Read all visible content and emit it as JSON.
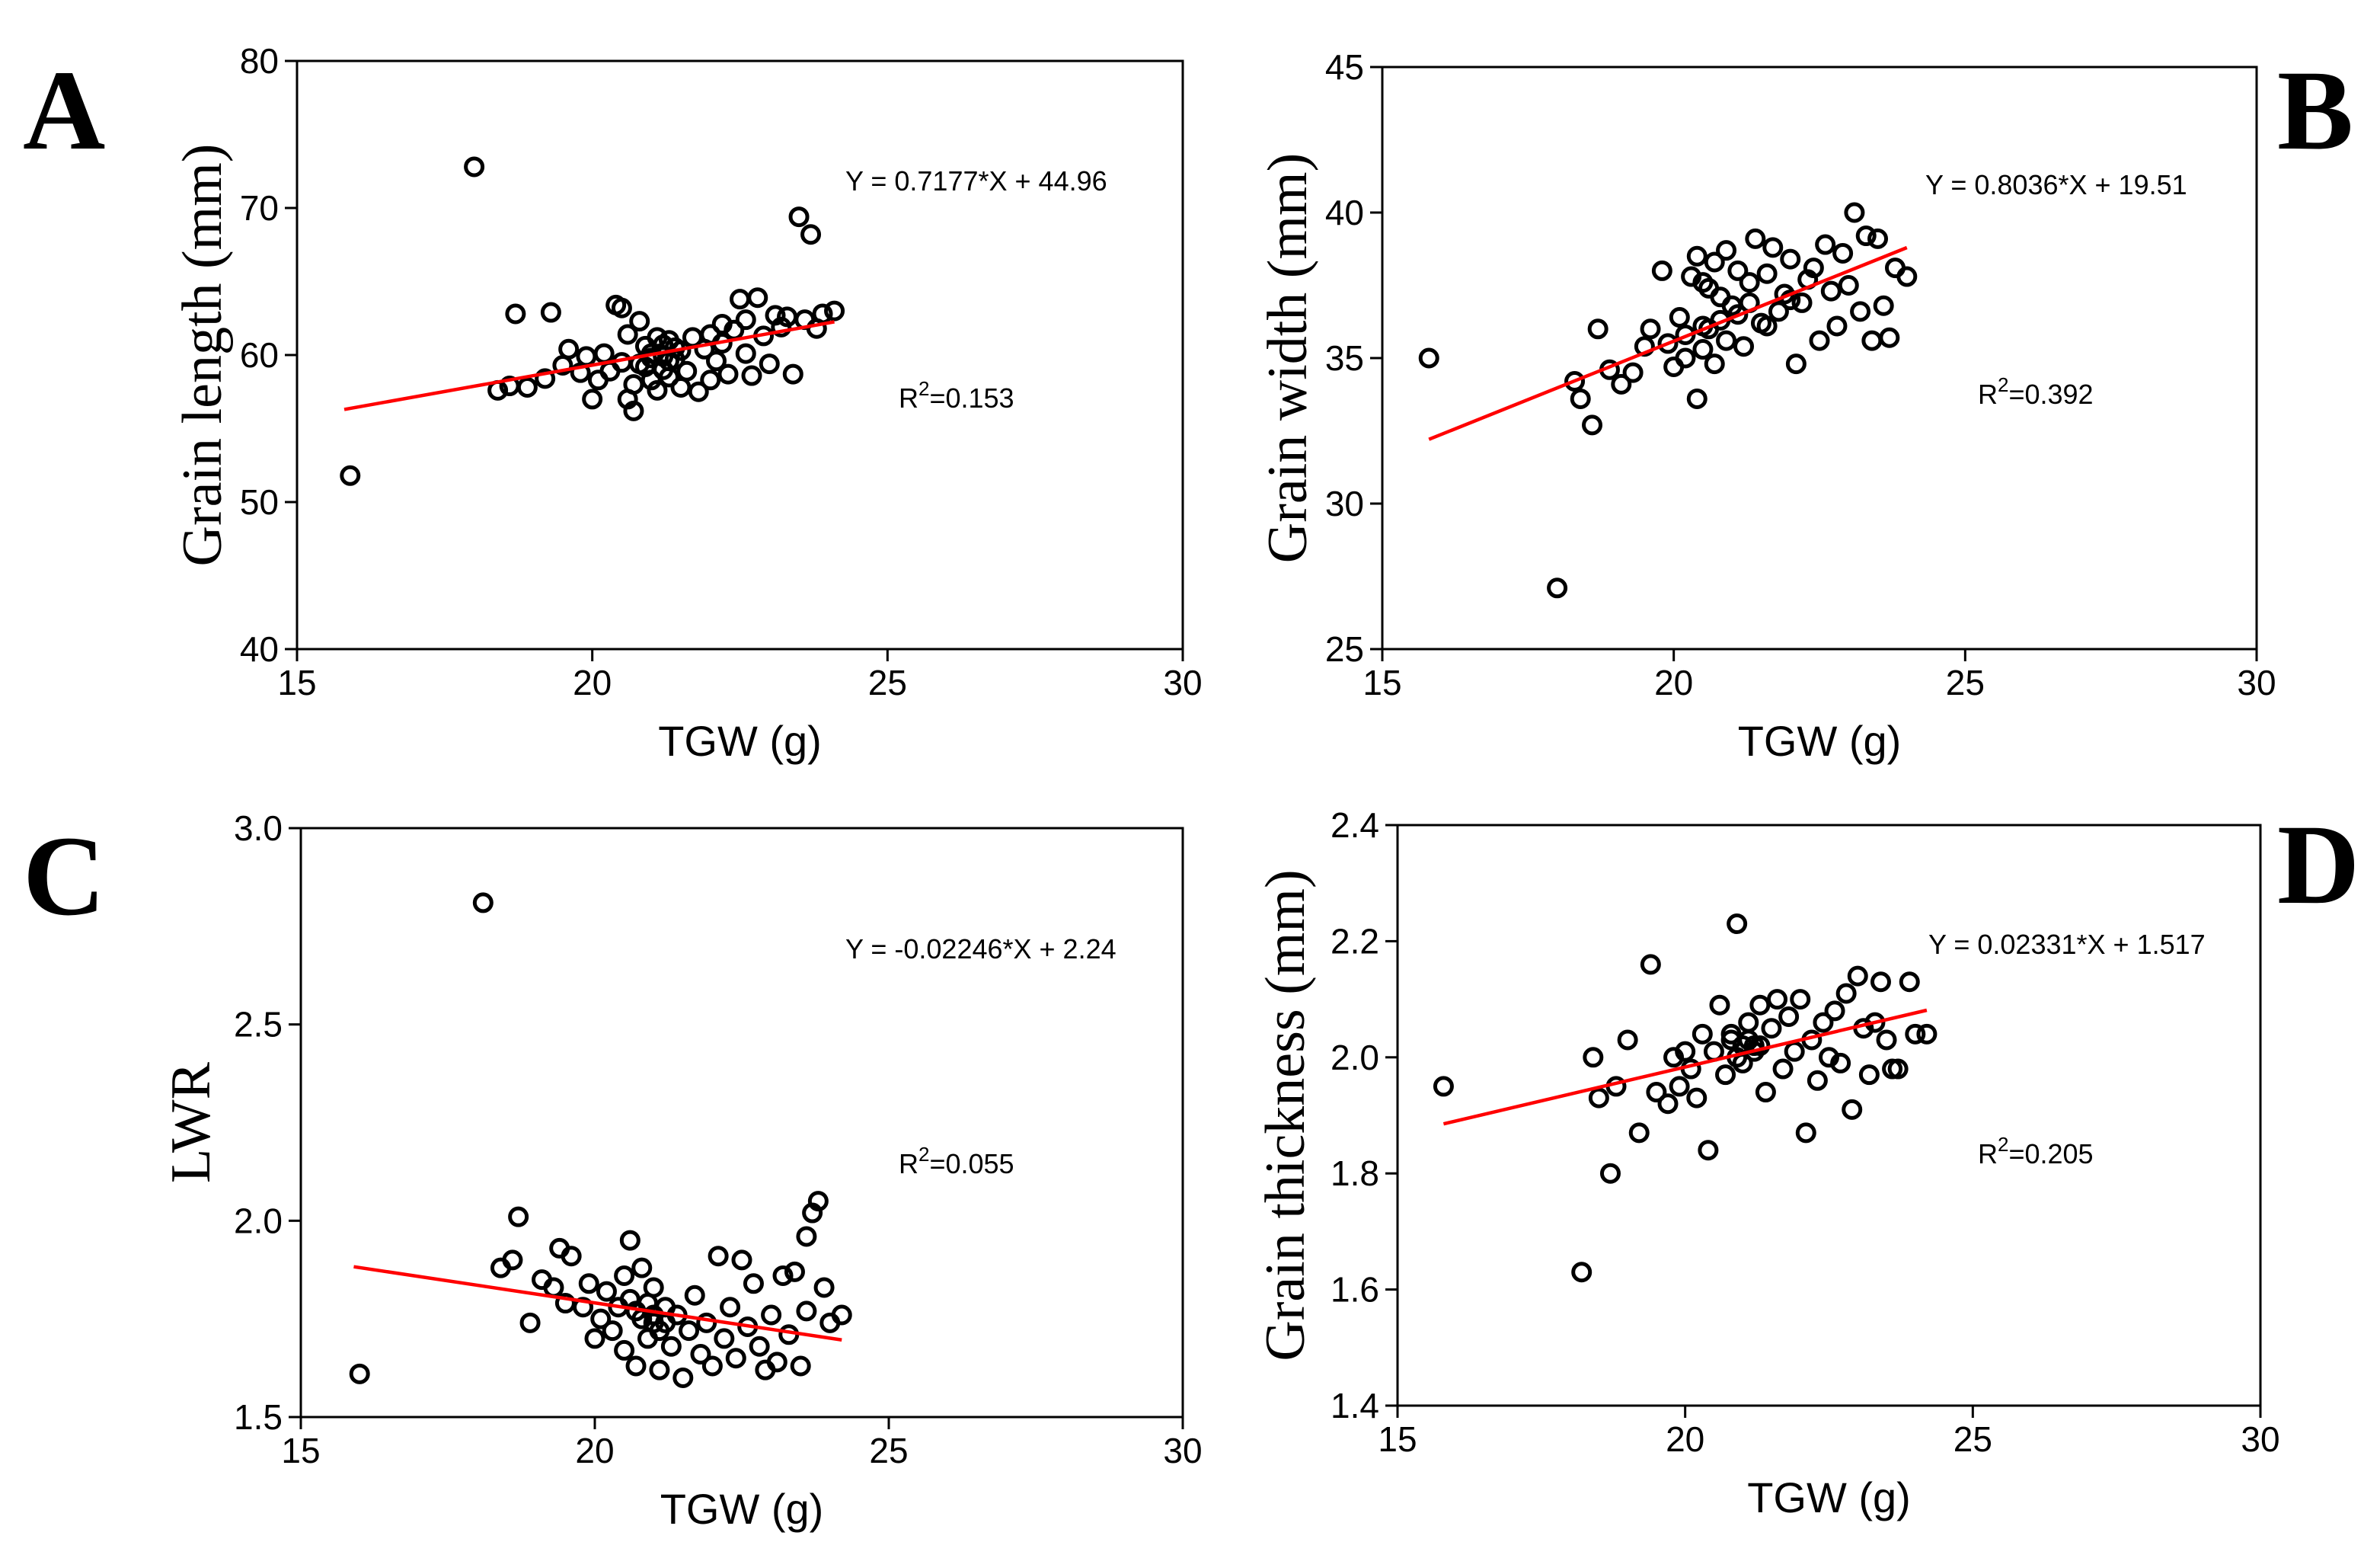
{
  "colors": {
    "points": "#000000",
    "fit_line": "#ff0000",
    "axes": "#000000",
    "background": "#ffffff"
  },
  "chart_data": [
    {
      "panel": "A",
      "type": "scatter",
      "xlabel": "TGW (g)",
      "ylabel": "Grain length (mm)",
      "xlim": [
        15,
        30
      ],
      "ylim": [
        40,
        80
      ],
      "xticks": [
        "15",
        "20",
        "25",
        "30"
      ],
      "yticks": [
        "40",
        "50",
        "60",
        "70",
        "80"
      ],
      "equation": "Y = 0.7177*X + 44.96",
      "r2_label": "R",
      "r2_sup": "2",
      "r2_value": "=0.153",
      "fit": {
        "slope": 0.7177,
        "intercept": 44.96,
        "x_range": [
          15.8,
          24.1
        ]
      },
      "grid": false,
      "points": [
        [
          15.9,
          51.8
        ],
        [
          18.0,
          72.8
        ],
        [
          18.4,
          57.6
        ],
        [
          18.6,
          57.9
        ],
        [
          18.7,
          62.8
        ],
        [
          18.9,
          57.8
        ],
        [
          19.2,
          58.4
        ],
        [
          19.3,
          62.9
        ],
        [
          19.5,
          59.3
        ],
        [
          19.6,
          60.4
        ],
        [
          19.8,
          58.8
        ],
        [
          19.9,
          59.9
        ],
        [
          20.0,
          57.0
        ],
        [
          20.1,
          58.3
        ],
        [
          20.2,
          60.1
        ],
        [
          20.3,
          58.9
        ],
        [
          20.4,
          63.4
        ],
        [
          20.5,
          59.5
        ],
        [
          20.5,
          63.2
        ],
        [
          20.6,
          57.0
        ],
        [
          20.6,
          61.4
        ],
        [
          20.7,
          58.0
        ],
        [
          20.7,
          56.2
        ],
        [
          20.8,
          59.4
        ],
        [
          20.8,
          62.3
        ],
        [
          20.9,
          60.6
        ],
        [
          21.0,
          58.3
        ],
        [
          21.0,
          59.8
        ],
        [
          21.1,
          57.6
        ],
        [
          21.1,
          61.2
        ],
        [
          21.2,
          59.0
        ],
        [
          21.2,
          60.7
        ],
        [
          21.3,
          58.5
        ],
        [
          21.3,
          61.0
        ],
        [
          21.4,
          59.7
        ],
        [
          21.5,
          57.8
        ],
        [
          21.5,
          60.3
        ],
        [
          21.6,
          58.9
        ],
        [
          21.7,
          61.2
        ],
        [
          21.8,
          57.5
        ],
        [
          21.9,
          60.4
        ],
        [
          22.0,
          58.3
        ],
        [
          22.0,
          61.4
        ],
        [
          22.1,
          59.6
        ],
        [
          22.2,
          62.1
        ],
        [
          22.2,
          60.8
        ],
        [
          22.3,
          58.7
        ],
        [
          22.4,
          61.7
        ],
        [
          22.5,
          63.8
        ],
        [
          22.6,
          60.1
        ],
        [
          22.6,
          62.4
        ],
        [
          22.7,
          58.6
        ],
        [
          22.8,
          63.9
        ],
        [
          22.9,
          61.3
        ],
        [
          23.0,
          59.4
        ],
        [
          23.1,
          62.7
        ],
        [
          23.2,
          61.9
        ],
        [
          23.3,
          62.6
        ],
        [
          23.4,
          58.7
        ],
        [
          23.5,
          69.4
        ],
        [
          23.6,
          62.4
        ],
        [
          23.7,
          68.2
        ],
        [
          23.8,
          61.8
        ],
        [
          23.9,
          62.8
        ],
        [
          24.1,
          63.0
        ],
        [
          21.0,
          60.1
        ],
        [
          21.2,
          59.9
        ],
        [
          21.4,
          60.5
        ],
        [
          20.9,
          59.2
        ],
        [
          21.3,
          59.6
        ]
      ]
    },
    {
      "panel": "B",
      "type": "scatter",
      "xlabel": "TGW (g)",
      "ylabel": "Grain width (mm)",
      "xlim": [
        15,
        30
      ],
      "ylim": [
        25,
        45
      ],
      "xticks": [
        "15",
        "20",
        "25",
        "30"
      ],
      "yticks": [
        "25",
        "30",
        "35",
        "40",
        "45"
      ],
      "equation": "Y = 0.8036*X + 19.51",
      "r2_label": "R",
      "r2_sup": "2",
      "r2_value": "=0.392",
      "fit": {
        "slope": 0.8036,
        "intercept": 19.51,
        "x_range": [
          15.8,
          24.0
        ]
      },
      "grid": false,
      "points": [
        [
          15.8,
          35.0
        ],
        [
          18.0,
          27.1
        ],
        [
          18.3,
          34.2
        ],
        [
          18.4,
          33.6
        ],
        [
          18.6,
          32.7
        ],
        [
          18.7,
          36.0
        ],
        [
          18.9,
          34.6
        ],
        [
          19.1,
          34.1
        ],
        [
          19.3,
          34.5
        ],
        [
          19.5,
          35.4
        ],
        [
          19.6,
          36.0
        ],
        [
          19.8,
          38.0
        ],
        [
          19.9,
          35.5
        ],
        [
          20.0,
          34.7
        ],
        [
          20.1,
          36.4
        ],
        [
          20.2,
          35.0
        ],
        [
          20.3,
          37.8
        ],
        [
          20.4,
          33.6
        ],
        [
          20.4,
          38.5
        ],
        [
          20.5,
          36.1
        ],
        [
          20.5,
          35.3
        ],
        [
          20.6,
          37.4
        ],
        [
          20.7,
          34.8
        ],
        [
          20.7,
          38.3
        ],
        [
          20.8,
          36.3
        ],
        [
          20.9,
          35.6
        ],
        [
          20.9,
          38.7
        ],
        [
          21.0,
          36.8
        ],
        [
          21.1,
          38.0
        ],
        [
          21.2,
          35.4
        ],
        [
          21.3,
          37.6
        ],
        [
          21.4,
          39.1
        ],
        [
          21.5,
          36.2
        ],
        [
          21.6,
          37.9
        ],
        [
          21.7,
          38.8
        ],
        [
          21.8,
          36.6
        ],
        [
          21.9,
          37.2
        ],
        [
          22.0,
          38.4
        ],
        [
          22.1,
          34.8
        ],
        [
          22.2,
          36.9
        ],
        [
          22.3,
          37.7
        ],
        [
          22.4,
          38.1
        ],
        [
          22.5,
          35.6
        ],
        [
          22.6,
          38.9
        ],
        [
          22.7,
          37.3
        ],
        [
          22.8,
          36.1
        ],
        [
          22.9,
          38.6
        ],
        [
          23.0,
          37.5
        ],
        [
          23.1,
          40.0
        ],
        [
          23.2,
          36.6
        ],
        [
          23.3,
          39.2
        ],
        [
          23.4,
          35.6
        ],
        [
          23.5,
          39.1
        ],
        [
          23.6,
          36.8
        ],
        [
          23.7,
          35.7
        ],
        [
          23.8,
          38.1
        ],
        [
          24.0,
          37.8
        ],
        [
          20.6,
          36.0
        ],
        [
          20.8,
          37.1
        ],
        [
          21.1,
          36.5
        ],
        [
          21.3,
          36.9
        ],
        [
          20.5,
          37.6
        ],
        [
          21.6,
          36.1
        ],
        [
          22.0,
          37.0
        ],
        [
          20.2,
          35.8
        ]
      ]
    },
    {
      "panel": "C",
      "type": "scatter",
      "xlabel": "TGW (g)",
      "ylabel": "LWR",
      "xlim": [
        15,
        30
      ],
      "ylim": [
        1.5,
        3.0
      ],
      "xticks": [
        "15",
        "20",
        "25",
        "30"
      ],
      "yticks": [
        "1.5",
        "2.0",
        "2.5",
        "3.0"
      ],
      "equation": "Y = -0.02246*X + 2.24",
      "r2_label": "R",
      "r2_sup": "2",
      "r2_value": "=0.055",
      "fit": {
        "slope": -0.02246,
        "intercept": 2.24,
        "x_range": [
          15.9,
          24.2
        ]
      },
      "grid": false,
      "points": [
        [
          16.0,
          1.61
        ],
        [
          18.1,
          2.81
        ],
        [
          18.4,
          1.88
        ],
        [
          18.6,
          1.9
        ],
        [
          18.7,
          2.01
        ],
        [
          18.9,
          1.74
        ],
        [
          19.1,
          1.85
        ],
        [
          19.3,
          1.83
        ],
        [
          19.4,
          1.93
        ],
        [
          19.5,
          1.79
        ],
        [
          19.6,
          1.91
        ],
        [
          19.8,
          1.78
        ],
        [
          19.9,
          1.84
        ],
        [
          20.0,
          1.7
        ],
        [
          20.1,
          1.75
        ],
        [
          20.2,
          1.82
        ],
        [
          20.3,
          1.72
        ],
        [
          20.4,
          1.78
        ],
        [
          20.5,
          1.67
        ],
        [
          20.5,
          1.86
        ],
        [
          20.6,
          1.8
        ],
        [
          20.6,
          1.95
        ],
        [
          20.7,
          1.63
        ],
        [
          20.8,
          1.75
        ],
        [
          20.8,
          1.88
        ],
        [
          20.9,
          1.7
        ],
        [
          21.0,
          1.83
        ],
        [
          21.0,
          1.74
        ],
        [
          21.1,
          1.62
        ],
        [
          21.2,
          1.78
        ],
        [
          21.3,
          1.68
        ],
        [
          21.4,
          1.76
        ],
        [
          21.5,
          1.6
        ],
        [
          21.6,
          1.72
        ],
        [
          21.7,
          1.81
        ],
        [
          21.8,
          1.66
        ],
        [
          21.9,
          1.74
        ],
        [
          22.0,
          1.63
        ],
        [
          22.1,
          1.91
        ],
        [
          22.2,
          1.7
        ],
        [
          22.3,
          1.78
        ],
        [
          22.4,
          1.65
        ],
        [
          22.5,
          1.9
        ],
        [
          22.6,
          1.73
        ],
        [
          22.7,
          1.84
        ],
        [
          22.8,
          1.68
        ],
        [
          22.9,
          1.62
        ],
        [
          23.0,
          1.76
        ],
        [
          23.1,
          1.64
        ],
        [
          23.2,
          1.86
        ],
        [
          23.3,
          1.71
        ],
        [
          23.4,
          1.87
        ],
        [
          23.5,
          1.63
        ],
        [
          23.6,
          1.77
        ],
        [
          23.7,
          2.02
        ],
        [
          23.8,
          2.05
        ],
        [
          23.9,
          1.83
        ],
        [
          24.0,
          1.74
        ],
        [
          24.2,
          1.76
        ],
        [
          23.6,
          1.96
        ],
        [
          21.0,
          1.76
        ],
        [
          21.2,
          1.74
        ],
        [
          20.9,
          1.79
        ],
        [
          21.1,
          1.72
        ],
        [
          20.7,
          1.77
        ]
      ]
    },
    {
      "panel": "D",
      "type": "scatter",
      "xlabel": "TGW (g)",
      "ylabel": "Grain thickness (mm)",
      "xlim": [
        15,
        30
      ],
      "ylim": [
        1.4,
        2.4
      ],
      "xticks": [
        "15",
        "20",
        "25",
        "30"
      ],
      "yticks": [
        "1.4",
        "1.6",
        "1.8",
        "2.0",
        "2.2",
        "2.4"
      ],
      "equation": "Y = 0.02331*X + 1.517",
      "r2_label": "R",
      "r2_sup": "2",
      "r2_value": "=0.205",
      "fit": {
        "slope": 0.02331,
        "intercept": 1.517,
        "x_range": [
          15.8,
          24.2
        ]
      },
      "grid": false,
      "points": [
        [
          15.8,
          1.95
        ],
        [
          18.2,
          1.63
        ],
        [
          18.4,
          2.0
        ],
        [
          18.5,
          1.93
        ],
        [
          18.7,
          1.8
        ],
        [
          18.8,
          1.95
        ],
        [
          19.0,
          2.03
        ],
        [
          19.2,
          1.87
        ],
        [
          19.4,
          2.16
        ],
        [
          19.5,
          1.94
        ],
        [
          19.7,
          1.92
        ],
        [
          19.8,
          2.0
        ],
        [
          19.9,
          1.95
        ],
        [
          20.0,
          2.01
        ],
        [
          20.1,
          1.98
        ],
        [
          20.2,
          1.93
        ],
        [
          20.3,
          2.04
        ],
        [
          20.4,
          1.84
        ],
        [
          20.5,
          2.01
        ],
        [
          20.6,
          2.09
        ],
        [
          20.7,
          1.97
        ],
        [
          20.8,
          2.03
        ],
        [
          20.9,
          2.23
        ],
        [
          21.0,
          1.99
        ],
        [
          21.1,
          2.06
        ],
        [
          21.2,
          2.02
        ],
        [
          21.3,
          2.09
        ],
        [
          21.4,
          1.94
        ],
        [
          21.5,
          2.05
        ],
        [
          21.6,
          2.1
        ],
        [
          21.7,
          1.98
        ],
        [
          21.8,
          2.07
        ],
        [
          21.9,
          2.01
        ],
        [
          22.0,
          2.1
        ],
        [
          22.1,
          1.87
        ],
        [
          22.2,
          2.03
        ],
        [
          22.3,
          1.96
        ],
        [
          22.4,
          2.06
        ],
        [
          22.5,
          2.0
        ],
        [
          22.6,
          2.08
        ],
        [
          22.7,
          1.99
        ],
        [
          22.8,
          2.11
        ],
        [
          22.9,
          1.91
        ],
        [
          23.0,
          2.14
        ],
        [
          23.1,
          2.05
        ],
        [
          23.2,
          1.97
        ],
        [
          23.3,
          2.06
        ],
        [
          23.4,
          2.13
        ],
        [
          23.5,
          2.03
        ],
        [
          23.6,
          1.98
        ],
        [
          23.7,
          1.98
        ],
        [
          23.9,
          2.13
        ],
        [
          24.0,
          2.04
        ],
        [
          24.2,
          2.04
        ],
        [
          21.0,
          2.02
        ],
        [
          21.2,
          2.01
        ],
        [
          20.9,
          2.0
        ],
        [
          21.1,
          2.03
        ],
        [
          21.3,
          2.02
        ],
        [
          20.8,
          2.04
        ]
      ]
    }
  ]
}
